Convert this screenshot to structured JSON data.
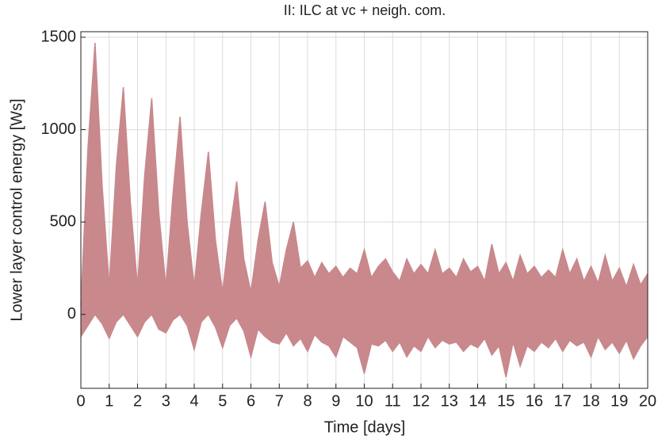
{
  "chart_data": {
    "type": "band",
    "title": "II: ILC at vc + neigh. com.",
    "xlabel": "Time [days]",
    "ylabel": "Lower layer control energy [Ws]",
    "x": [
      0,
      0.25,
      0.5,
      0.75,
      1,
      1.25,
      1.5,
      1.75,
      2,
      2.25,
      2.5,
      2.75,
      3,
      3.25,
      3.5,
      3.75,
      4,
      4.25,
      4.5,
      4.75,
      5,
      5.25,
      5.5,
      5.75,
      6,
      6.25,
      6.5,
      6.75,
      7,
      7.25,
      7.5,
      7.75,
      8,
      8.25,
      8.5,
      8.75,
      9,
      9.25,
      9.5,
      9.75,
      10,
      10.25,
      10.5,
      10.75,
      11,
      11.25,
      11.5,
      11.75,
      12,
      12.25,
      12.5,
      12.75,
      13,
      13.25,
      13.5,
      13.75,
      14,
      14.25,
      14.5,
      14.75,
      15,
      15.25,
      15.5,
      15.75,
      16,
      16.25,
      16.5,
      16.75,
      17,
      17.25,
      17.5,
      17.75,
      18,
      18.25,
      18.5,
      18.75,
      19,
      19.25,
      19.5,
      19.75,
      20
    ],
    "series": [
      {
        "color": "#c8888c",
        "values": [
          50,
          900,
          1470,
          700,
          150,
          800,
          1230,
          600,
          150,
          750,
          1170,
          550,
          150,
          650,
          1070,
          500,
          150,
          550,
          880,
          400,
          120,
          450,
          720,
          300,
          120,
          400,
          610,
          280,
          150,
          350,
          500,
          250,
          290,
          200,
          280,
          220,
          260,
          200,
          250,
          220,
          350,
          200,
          260,
          300,
          230,
          180,
          300,
          220,
          270,
          220,
          350,
          220,
          250,
          200,
          300,
          230,
          260,
          180,
          380,
          220,
          280,
          180,
          320,
          220,
          260,
          200,
          240,
          200,
          350,
          220,
          300,
          180,
          260,
          170,
          320,
          180,
          250,
          150,
          270,
          160,
          220
        ]
      },
      {
        "color": "#c8888c",
        "values": [
          -120,
          -60,
          0,
          -50,
          -130,
          -40,
          0,
          -60,
          -120,
          -40,
          0,
          -80,
          -100,
          -30,
          0,
          -60,
          -190,
          -40,
          0,
          -70,
          -180,
          -60,
          -20,
          -90,
          -230,
          -80,
          -120,
          -150,
          -160,
          -100,
          -170,
          -130,
          -200,
          -110,
          -150,
          -170,
          -230,
          -120,
          -150,
          -180,
          -320,
          -160,
          -170,
          -140,
          -200,
          -150,
          -230,
          -170,
          -200,
          -120,
          -180,
          -140,
          -160,
          -150,
          -200,
          -160,
          -180,
          -130,
          -220,
          -170,
          -340,
          -150,
          -280,
          -170,
          -200,
          -150,
          -180,
          -130,
          -200,
          -140,
          -170,
          -150,
          -230,
          -120,
          -190,
          -150,
          -210,
          -140,
          -240,
          -170,
          -120
        ]
      }
    ],
    "xlim": [
      0,
      20
    ],
    "ylim": [
      -400,
      1530
    ],
    "xticks": [
      0,
      1,
      2,
      3,
      4,
      5,
      6,
      7,
      8,
      9,
      10,
      11,
      12,
      13,
      14,
      15,
      16,
      17,
      18,
      19,
      20
    ],
    "yticks": [
      0,
      500,
      1000,
      1500
    ],
    "grid": true
  }
}
